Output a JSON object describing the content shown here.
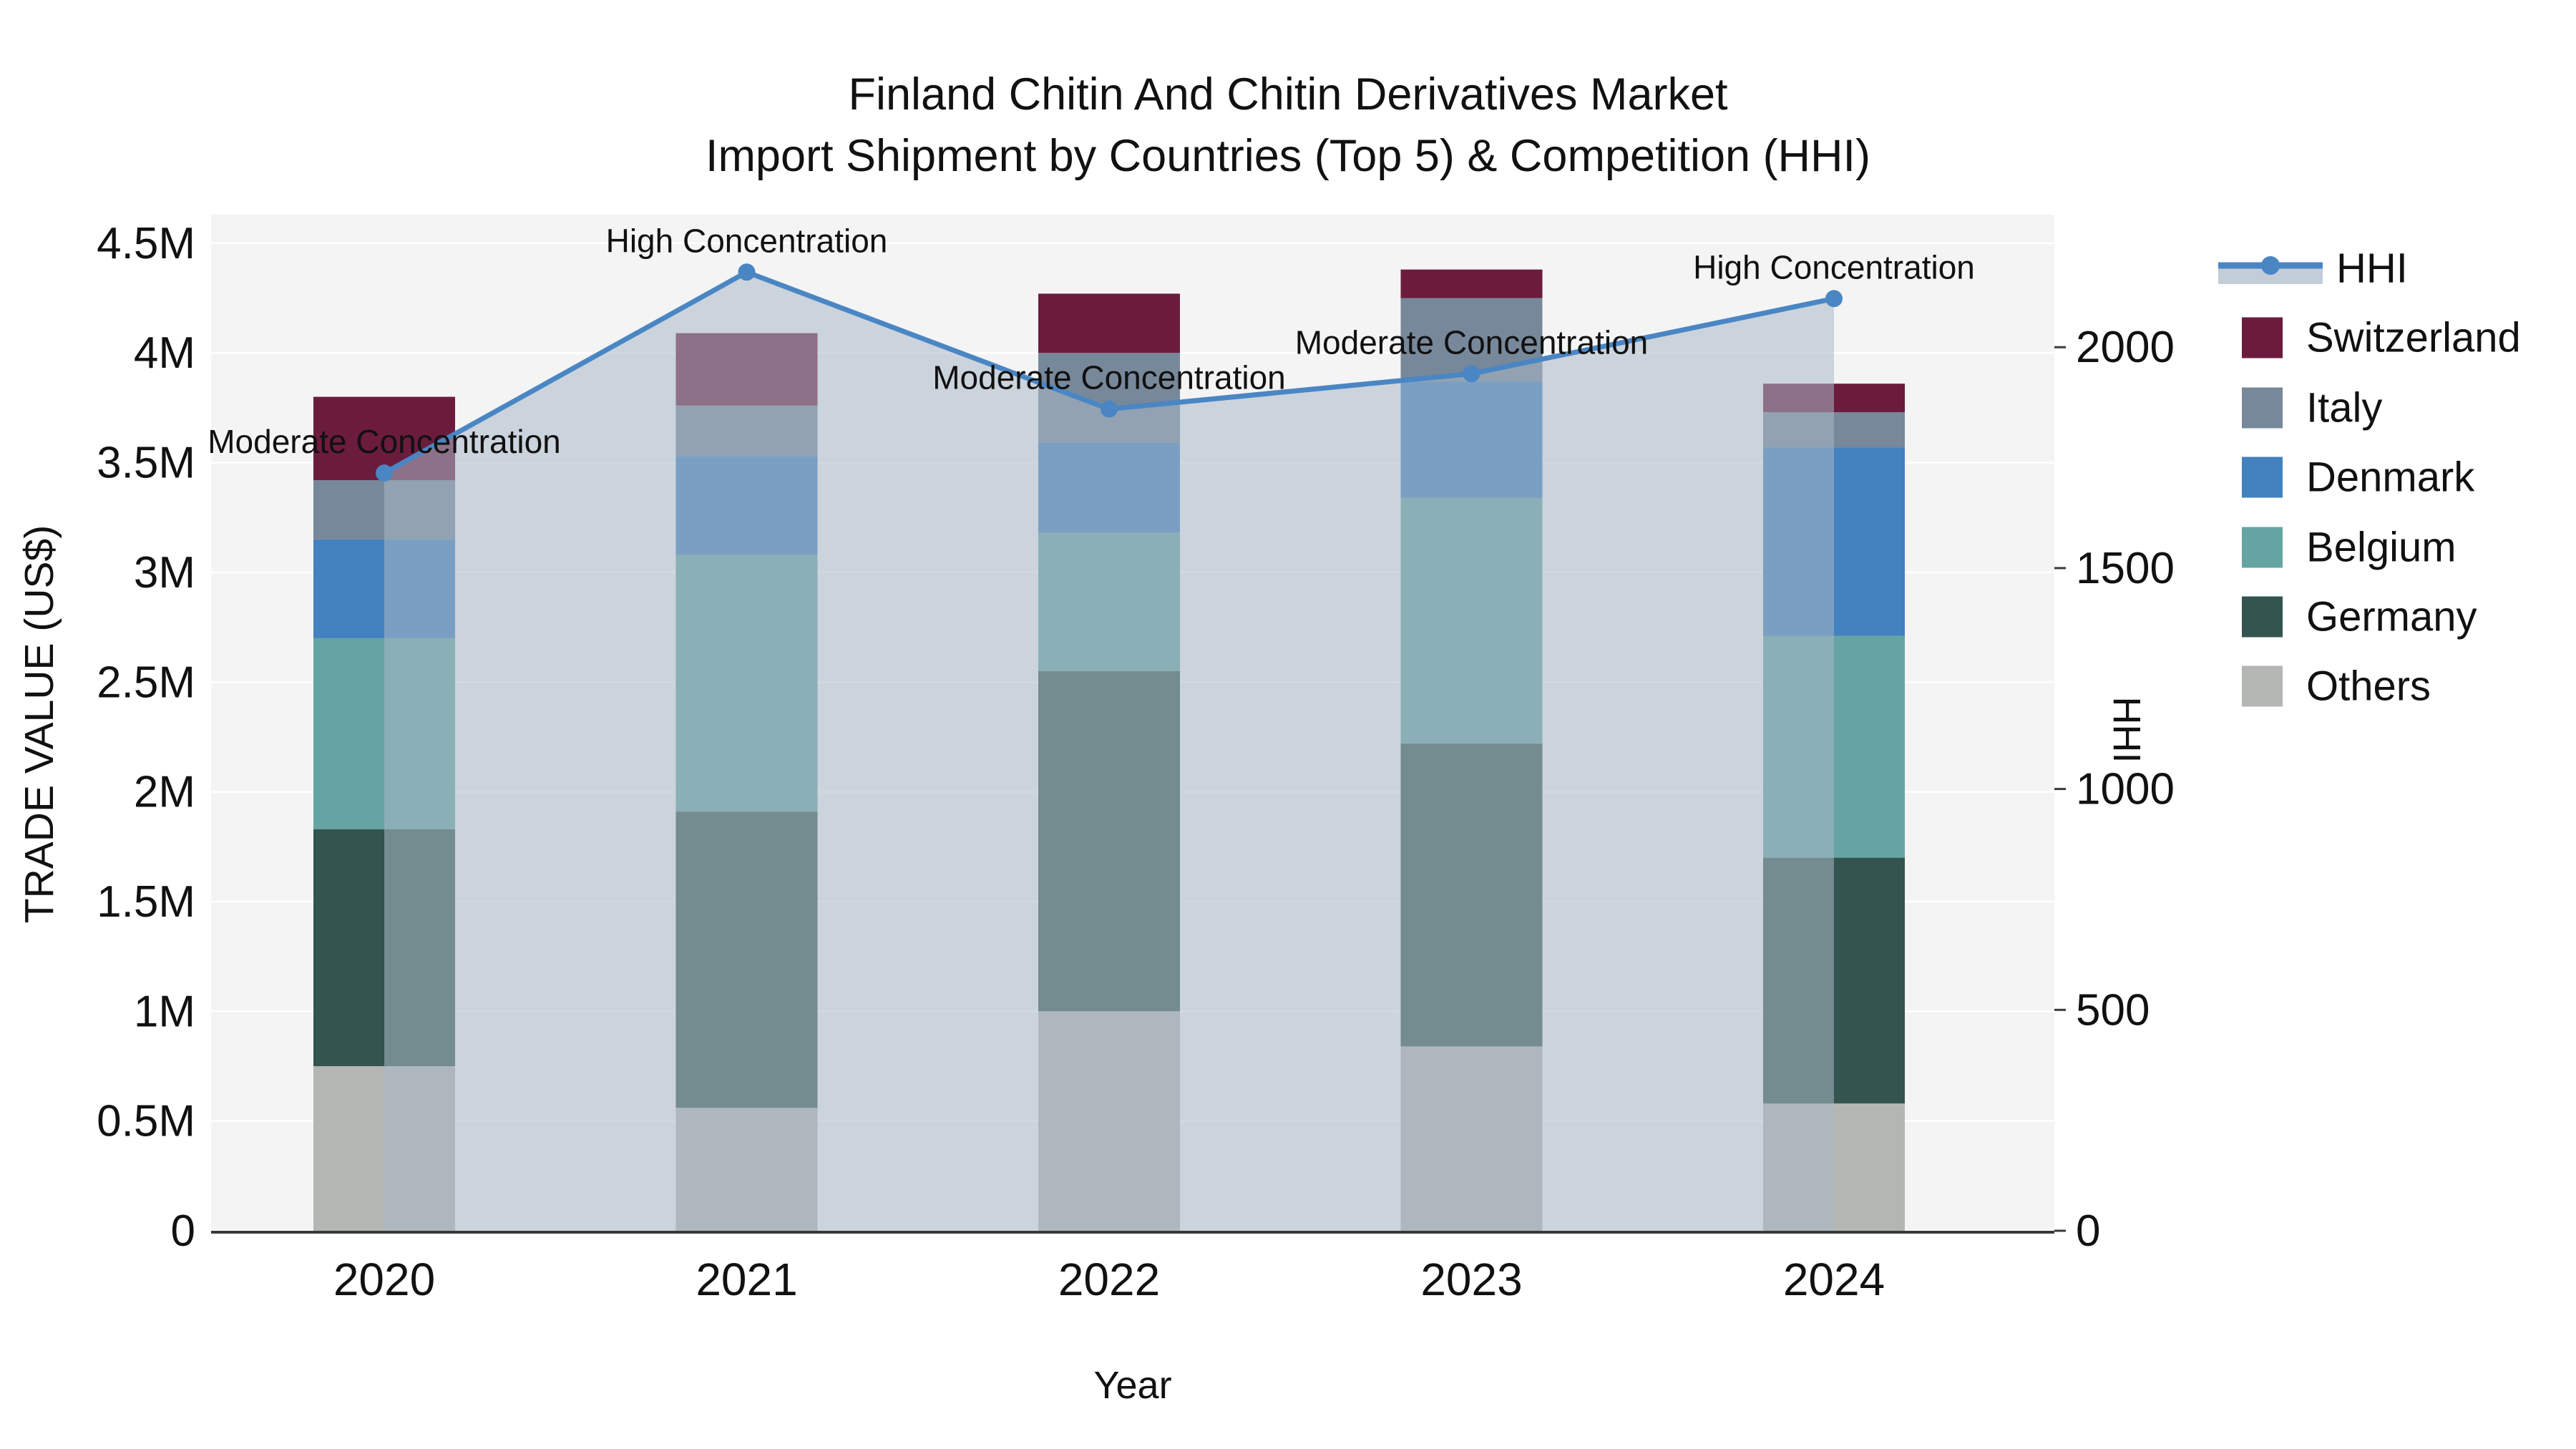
{
  "title": {
    "line1": "Finland Chitin And Chitin Derivatives Market",
    "line2": "Import Shipment by Countries (Top 5) & Competition (HHI)"
  },
  "chart_data": {
    "type": "stacked-bar+line",
    "categories": [
      "2020",
      "2021",
      "2022",
      "2023",
      "2024"
    ],
    "series": [
      {
        "name": "Others",
        "color": "#b4b6b4",
        "values": [
          0.75,
          0.56,
          1.0,
          0.84,
          0.58
        ]
      },
      {
        "name": "Germany",
        "color": "#33544f",
        "values": [
          1.08,
          1.35,
          1.55,
          1.38,
          1.12
        ]
      },
      {
        "name": "Belgium",
        "color": "#64a5a3",
        "values": [
          0.87,
          1.17,
          0.63,
          1.12,
          1.01
        ]
      },
      {
        "name": "Denmark",
        "color": "#4381bf",
        "values": [
          0.45,
          0.45,
          0.41,
          0.53,
          0.86
        ]
      },
      {
        "name": "Italy",
        "color": "#77889a",
        "values": [
          0.27,
          0.23,
          0.41,
          0.38,
          0.16
        ]
      },
      {
        "name": "Switzerland",
        "color": "#6b1c3d",
        "values": [
          0.38,
          0.33,
          0.27,
          0.13,
          0.13
        ]
      }
    ],
    "line_series": {
      "name": "HHI",
      "color": "#4a86c4",
      "area_color": "#aab8c7",
      "area_opacity": 0.55,
      "values": [
        1715,
        2170,
        1860,
        1940,
        2110
      ],
      "annotations": [
        "Moderate Concentration",
        "High Concentration",
        "Moderate Concentration",
        "Moderate Concentration",
        "High Concentration"
      ]
    },
    "y_axis_left": {
      "label": "TRADE VALUE (US$)",
      "tick_values": [
        0,
        0.5,
        1,
        1.5,
        2,
        2.5,
        3,
        3.5,
        4,
        4.5
      ],
      "tick_labels": [
        "0",
        "0.5M",
        "1M",
        "1.5M",
        "2M",
        "2.5M",
        "3M",
        "3.5M",
        "4M",
        "4.5M"
      ],
      "range": [
        0,
        4.63
      ]
    },
    "y_axis_right": {
      "label": "HHI",
      "tick_values": [
        0,
        500,
        1000,
        1500,
        2000
      ],
      "tick_labels": [
        "0",
        "500",
        "1000",
        "1500",
        "2000"
      ],
      "range": [
        0,
        2300
      ]
    },
    "x_axis": {
      "label": "Year"
    },
    "style": {
      "plot_bg": "#f4f4f5",
      "gridline": "#ffffff",
      "spine": "#3a3a3a"
    },
    "legend_position": "outside-right",
    "grid": true
  },
  "legend": {
    "items": [
      {
        "label": "HHI",
        "type": "line",
        "color": "#4a86c4"
      },
      {
        "label": "Switzerland",
        "type": "patch",
        "color": "#6b1c3d"
      },
      {
        "label": "Italy",
        "type": "patch",
        "color": "#77889a"
      },
      {
        "label": "Denmark",
        "type": "patch",
        "color": "#4381bf"
      },
      {
        "label": "Belgium",
        "type": "patch",
        "color": "#64a5a3"
      },
      {
        "label": "Germany",
        "type": "patch",
        "color": "#33544f"
      },
      {
        "label": "Others",
        "type": "patch",
        "color": "#b4b6b4"
      }
    ]
  }
}
